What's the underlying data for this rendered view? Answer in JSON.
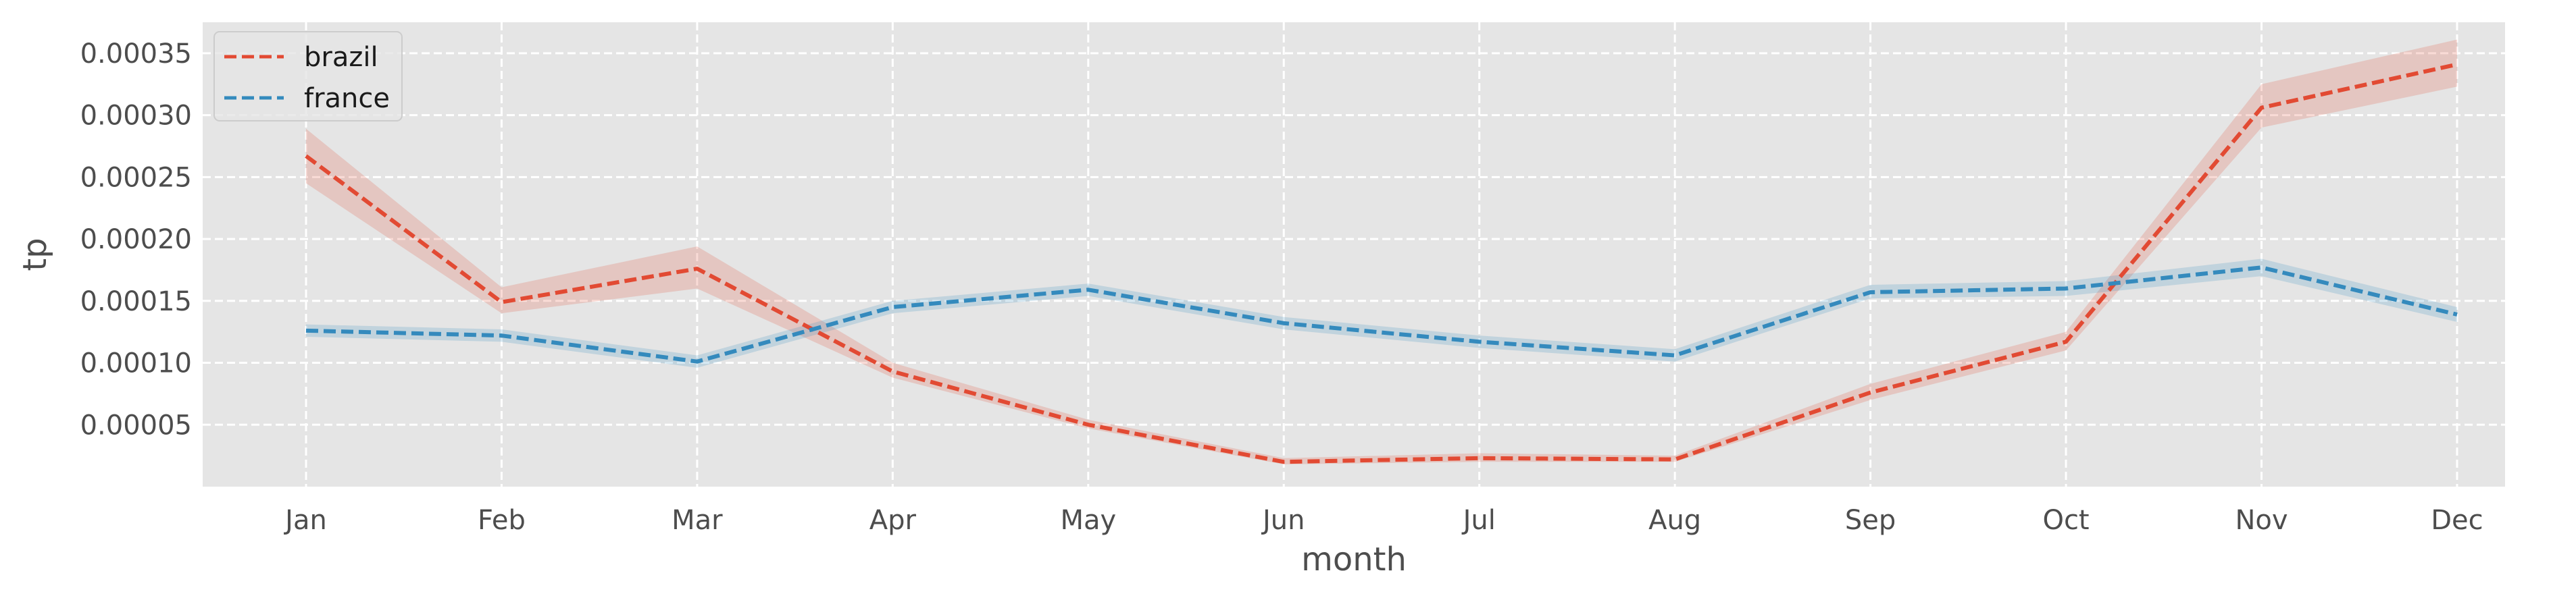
{
  "chart_data": {
    "type": "line",
    "xlabel": "month",
    "ylabel": "tp",
    "categories": [
      "Jan",
      "Feb",
      "Mar",
      "Apr",
      "May",
      "Jun",
      "Jul",
      "Aug",
      "Sep",
      "Oct",
      "Nov",
      "Dec"
    ],
    "ylim": [
      0.0,
      0.000375
    ],
    "yticks": [
      5e-05,
      0.0001,
      0.00015,
      0.0002,
      0.00025,
      0.0003,
      0.00035
    ],
    "ytick_labels": [
      "0.00005",
      "0.00010",
      "0.00015",
      "0.00020",
      "0.00025",
      "0.00030",
      "0.00035"
    ],
    "grid": true,
    "legend_position": "top-left",
    "series": [
      {
        "name": "brazil",
        "color": "#E24A33",
        "line_style": "dashed",
        "values": [
          0.000267,
          0.000149,
          0.000176,
          9.3e-05,
          5e-05,
          2e-05,
          2.3e-05,
          2.2e-05,
          7.6e-05,
          0.000117,
          0.000306,
          0.000341
        ],
        "ci_lower": [
          0.000245,
          0.00014,
          0.00016,
          8.8e-05,
          4.7e-05,
          1.8e-05,
          2e-05,
          2e-05,
          7e-05,
          0.00011,
          0.00029,
          0.000323
        ],
        "ci_upper": [
          0.000289,
          0.000161,
          0.000194,
          0.0001,
          5.4e-05,
          2.3e-05,
          2.7e-05,
          2.5e-05,
          8.3e-05,
          0.000125,
          0.000325,
          0.000361
        ]
      },
      {
        "name": "france",
        "color": "#348ABD",
        "line_style": "dashed",
        "values": [
          0.000126,
          0.000122,
          0.000101,
          0.000145,
          0.000159,
          0.000132,
          0.000117,
          0.000106,
          0.000157,
          0.00016,
          0.000177,
          0.000139
        ],
        "ci_lower": [
          0.000121,
          0.000117,
          9.6e-05,
          0.00014,
          0.000154,
          0.000127,
          0.000112,
          0.000101,
          0.000152,
          0.000154,
          0.00017,
          0.000133
        ],
        "ci_upper": [
          0.000131,
          0.000127,
          0.000106,
          0.00015,
          0.000164,
          0.000137,
          0.000122,
          0.000111,
          0.000163,
          0.000166,
          0.000184,
          0.000145
        ]
      }
    ]
  }
}
